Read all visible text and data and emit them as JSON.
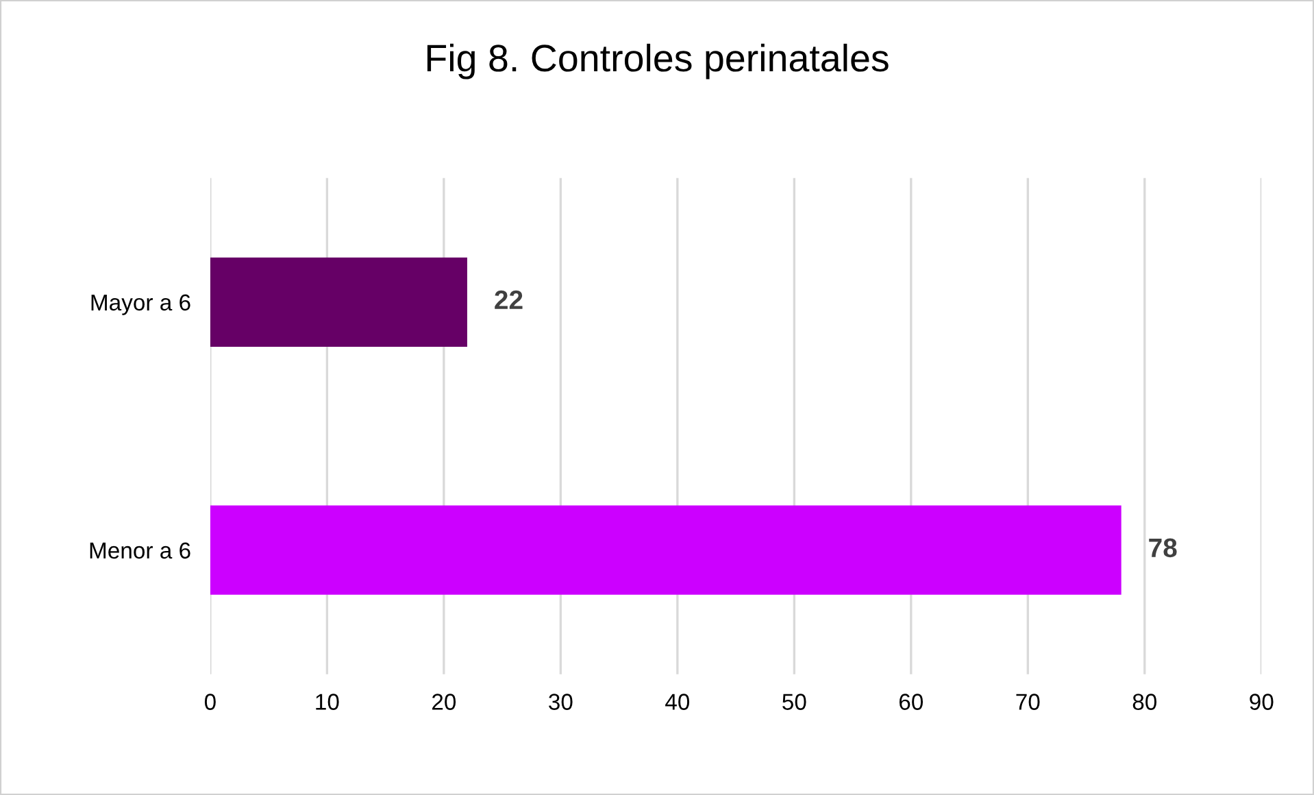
{
  "chart_data": {
    "type": "bar",
    "orientation": "horizontal",
    "title": "Fig 8. Controles perinatales",
    "categories": [
      "Mayor a 6",
      "Menor a 6"
    ],
    "values": [
      22,
      78
    ],
    "colors": [
      "#660066",
      "#cc00ff"
    ],
    "xlim": [
      0,
      90
    ],
    "xticks": [
      0,
      10,
      20,
      30,
      40,
      50,
      60,
      70,
      80,
      90
    ],
    "grid": "x",
    "data_labels": true
  }
}
